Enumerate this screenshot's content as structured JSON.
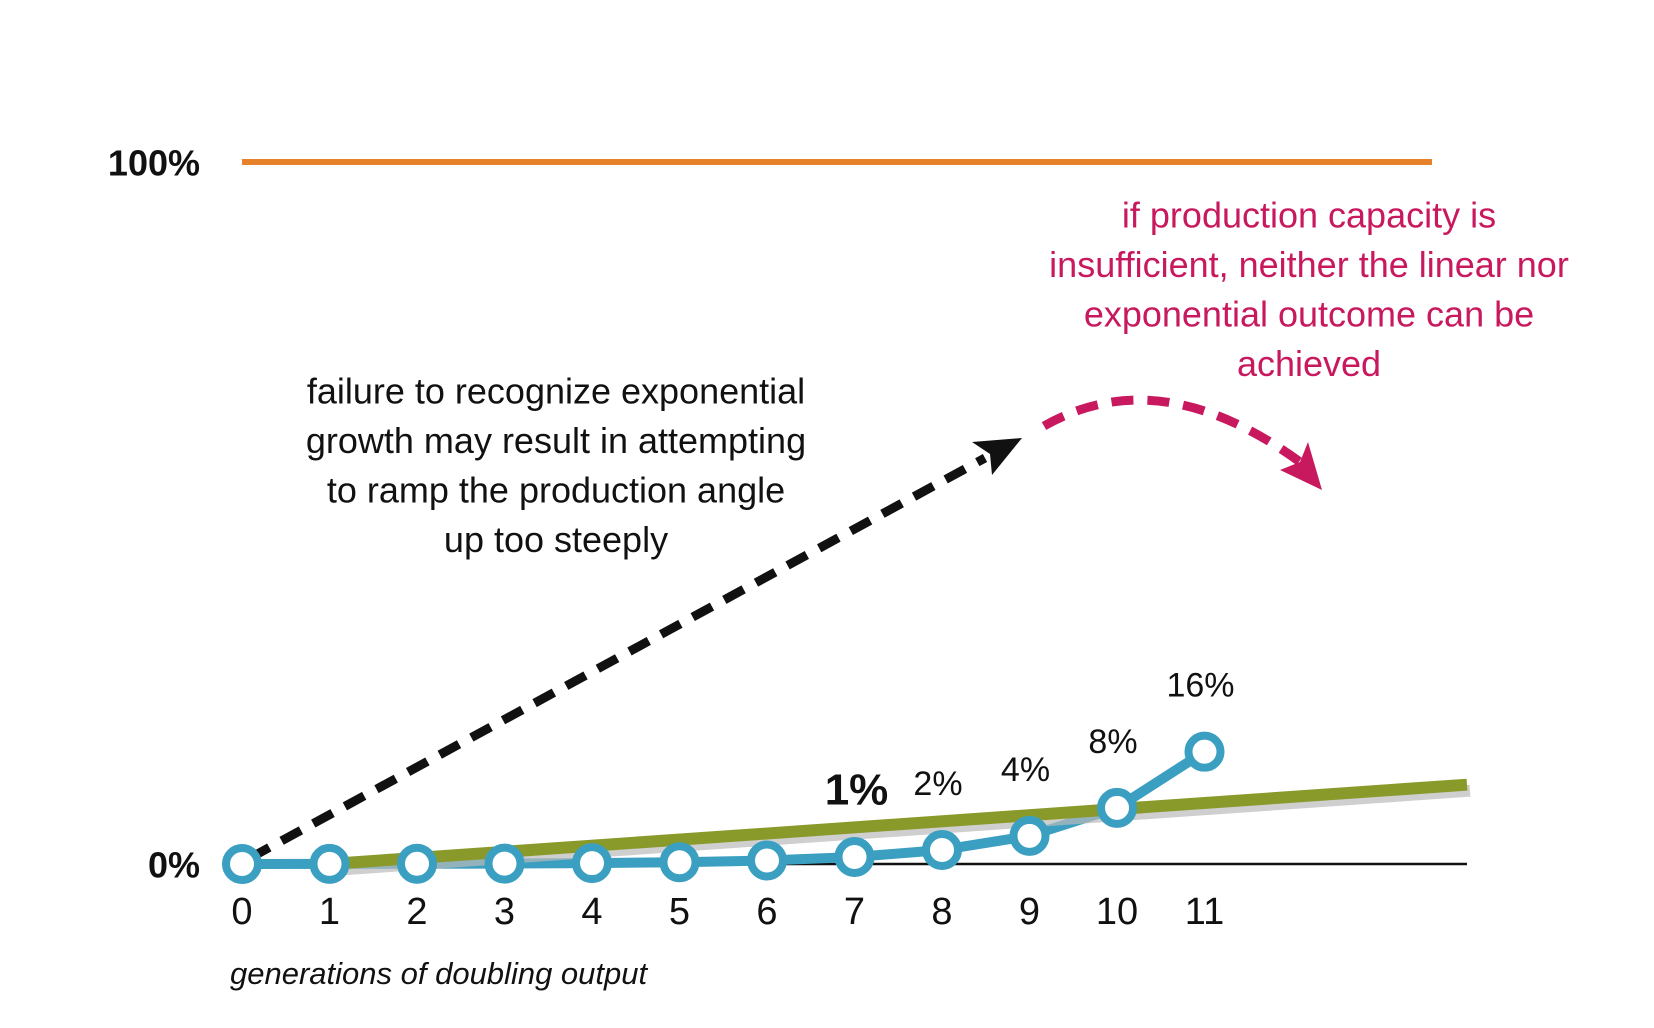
{
  "chart_data": {
    "type": "line",
    "xlabel": "generations of doubling output",
    "xlim": [
      0,
      14
    ],
    "ylim": [
      0,
      100
    ],
    "xticks": [
      0,
      1,
      2,
      3,
      4,
      5,
      6,
      7,
      8,
      9,
      10,
      11
    ],
    "yticks": [
      {
        "value": 0,
        "label": "0%"
      },
      {
        "value": 100,
        "label": "100%"
      }
    ],
    "capacity_line": {
      "value": 100,
      "x": [
        0,
        13.6
      ],
      "color": "#e8822a"
    },
    "series": [
      {
        "color": "#3a9fc0",
        "markers": true,
        "x": [
          0,
          1,
          2,
          3,
          4,
          5,
          6,
          7,
          8,
          9,
          10,
          11
        ],
        "values": [
          0,
          0.02,
          0.03,
          0.06,
          0.13,
          0.25,
          0.5,
          1,
          2,
          4,
          8,
          16
        ],
        "value_labels": [
          null,
          null,
          null,
          null,
          null,
          null,
          null,
          "1%",
          "2%",
          "4%",
          "8%",
          "16%"
        ]
      },
      {
        "color": "#8a9a2a",
        "markers": false,
        "x": [
          1,
          14
        ],
        "values": [
          0,
          11.3
        ]
      }
    ],
    "annotations": [
      {
        "lines": [
          "failure to recognize exponential",
          "growth may result in attempting",
          "to ramp the production angle",
          "up too steeply"
        ],
        "color": "#111111"
      },
      {
        "lines": [
          "if production capacity is",
          "insufficient, neither the linear nor",
          "exponential outcome can be",
          "achieved"
        ],
        "color": "#c8195f"
      }
    ]
  }
}
